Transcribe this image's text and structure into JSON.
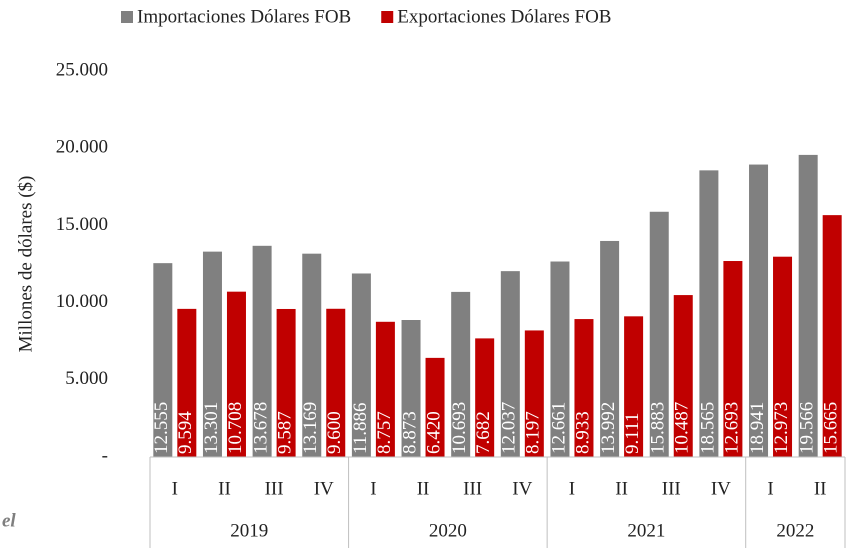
{
  "chart_data": {
    "type": "bar",
    "y_label": "Millones de dólares ($)",
    "categories": [
      "I",
      "II",
      "III",
      "IV",
      "I",
      "II",
      "III",
      "IV",
      "I",
      "II",
      "III",
      "IV",
      "I",
      "II"
    ],
    "category_groups": [
      "2019",
      "2019",
      "2019",
      "2019",
      "2020",
      "2020",
      "2020",
      "2020",
      "2021",
      "2021",
      "2021",
      "2021",
      "2022",
      "2022"
    ],
    "series": [
      {
        "name": "Importaciones Dólares FOB",
        "color": "#808080",
        "values": [
          12555,
          13301,
          13678,
          13169,
          11886,
          8873,
          10693,
          12037,
          12661,
          13992,
          15883,
          18565,
          18941,
          19566
        ],
        "value_labels": [
          "12.555",
          "13.301",
          "13.678",
          "13.169",
          "11.886",
          "8.873",
          "10.693",
          "12.037",
          "12.661",
          "13.992",
          "15.883",
          "18.565",
          "18.941",
          "19.566"
        ]
      },
      {
        "name": "Exportaciones Dólares FOB",
        "color": "#c00000",
        "values": [
          9594,
          10708,
          9587,
          9600,
          8757,
          6420,
          7682,
          8197,
          8933,
          9111,
          10487,
          12693,
          12973,
          15665
        ],
        "value_labels": [
          "9.594",
          "10.708",
          "9.587",
          "9.600",
          "8.757",
          "6.420",
          "7.682",
          "8.197",
          "8.933",
          "9.111",
          "10.487",
          "12.693",
          "12.973",
          "15.665"
        ]
      }
    ],
    "ylim": [
      0,
      25000
    ],
    "yticks": [
      {
        "value": 0,
        "label": "-"
      },
      {
        "value": 5000,
        "label": "5.000"
      },
      {
        "value": 10000,
        "label": "10.000"
      },
      {
        "value": 15000,
        "label": "15.000"
      },
      {
        "value": 20000,
        "label": "20.000"
      },
      {
        "value": 25000,
        "label": "25.000"
      }
    ],
    "legend": "top",
    "source_note": "el"
  }
}
